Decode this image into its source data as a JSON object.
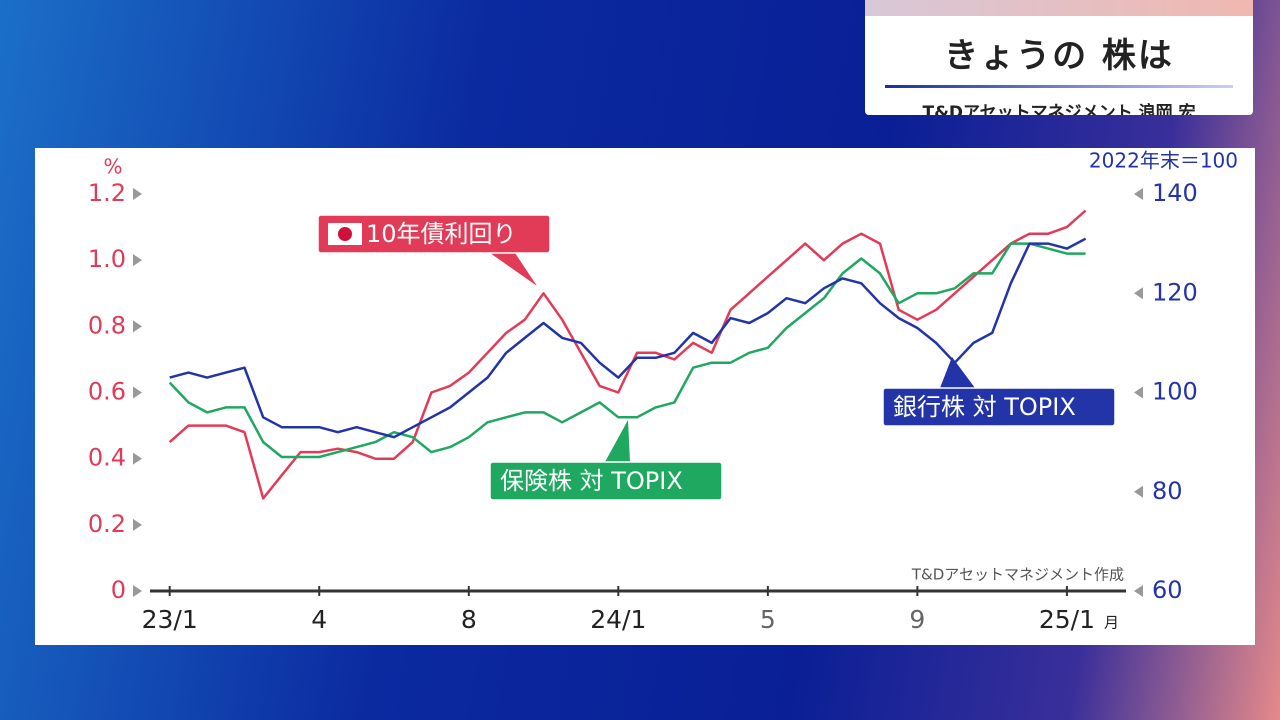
{
  "header": {
    "title": "きょうの 株は",
    "subtitle": "T&Dアセットマネジメント 浪岡 宏"
  },
  "chart_data": {
    "type": "line",
    "y_label": "%",
    "y2_label": "2022年末＝100",
    "x_unit": "月",
    "source": "T&Dアセットマネジメント作成",
    "x": [
      0,
      0.5,
      1,
      1.5,
      2,
      2.5,
      3,
      3.5,
      4,
      4.5,
      5,
      5.5,
      6,
      6.5,
      7,
      7.5,
      8,
      8.5,
      9,
      9.5,
      10,
      10.5,
      11,
      11.5,
      12,
      12.5,
      13,
      13.5,
      14,
      14.5,
      15,
      15.5,
      16,
      16.5,
      17,
      17.5,
      18,
      18.5,
      19,
      19.5,
      20,
      20.5,
      21,
      21.5,
      22,
      22.5,
      23,
      23.5,
      24,
      24.5
    ],
    "xlim": [
      -0.5,
      25.5
    ],
    "xticks": [
      {
        "value": 0,
        "label": "23/1"
      },
      4,
      8,
      {
        "value": 12,
        "label": "24/1"
      },
      {
        "value": 16,
        "label": "5"
      },
      {
        "value": 20,
        "label": "9"
      },
      {
        "value": 24,
        "label": "25/1"
      }
    ],
    "ylim": [
      0,
      1.2
    ],
    "yticks": [
      0,
      0.2,
      0.4,
      0.6,
      0.8,
      {
        "value": 1.0,
        "label": "1.0"
      },
      1.2
    ],
    "y2lim": [
      60,
      140
    ],
    "y2ticks": [
      60,
      80,
      100,
      120,
      140
    ],
    "series": [
      {
        "name": "10年債利回り",
        "color": "#e23b58",
        "axis": "y",
        "values": [
          0.45,
          0.5,
          0.5,
          0.5,
          0.48,
          0.28,
          0.35,
          0.42,
          0.42,
          0.43,
          0.42,
          0.4,
          0.4,
          0.45,
          0.6,
          0.62,
          0.66,
          0.72,
          0.78,
          0.82,
          0.9,
          0.82,
          0.72,
          0.62,
          0.6,
          0.72,
          0.72,
          0.7,
          0.75,
          0.72,
          0.85,
          0.9,
          0.95,
          1.0,
          1.05,
          1.0,
          1.05,
          1.08,
          1.05,
          0.85,
          0.82,
          0.85,
          0.9,
          0.95,
          1.0,
          1.05,
          1.08,
          1.08,
          1.1,
          1.15
        ]
      },
      {
        "name": "保険株 対 TOPIX",
        "color": "#1fa860",
        "axis": "y2",
        "values": [
          102,
          98,
          96,
          97,
          97,
          90,
          87,
          87,
          87,
          88,
          89,
          90,
          92,
          91,
          88,
          89,
          91,
          94,
          95,
          96,
          96,
          94,
          96,
          98,
          95,
          95,
          97,
          98,
          105,
          106,
          106,
          108,
          109,
          113,
          116,
          119,
          124,
          127,
          124,
          118,
          120,
          120,
          121,
          124,
          124,
          130,
          130,
          129,
          128,
          128
        ]
      },
      {
        "name": "銀行株 対 TOPIX",
        "color": "#2234a8",
        "axis": "y2",
        "values": [
          103,
          104,
          103,
          104,
          105,
          95,
          93,
          93,
          93,
          92,
          93,
          92,
          91,
          93,
          95,
          97,
          100,
          103,
          108,
          111,
          114,
          111,
          110,
          106,
          103,
          107,
          107,
          108,
          112,
          110,
          115,
          114,
          116,
          119,
          118,
          121,
          123,
          122,
          118,
          115,
          113,
          110,
          106,
          110,
          112,
          122,
          130,
          130,
          129,
          131
        ]
      }
    ]
  }
}
